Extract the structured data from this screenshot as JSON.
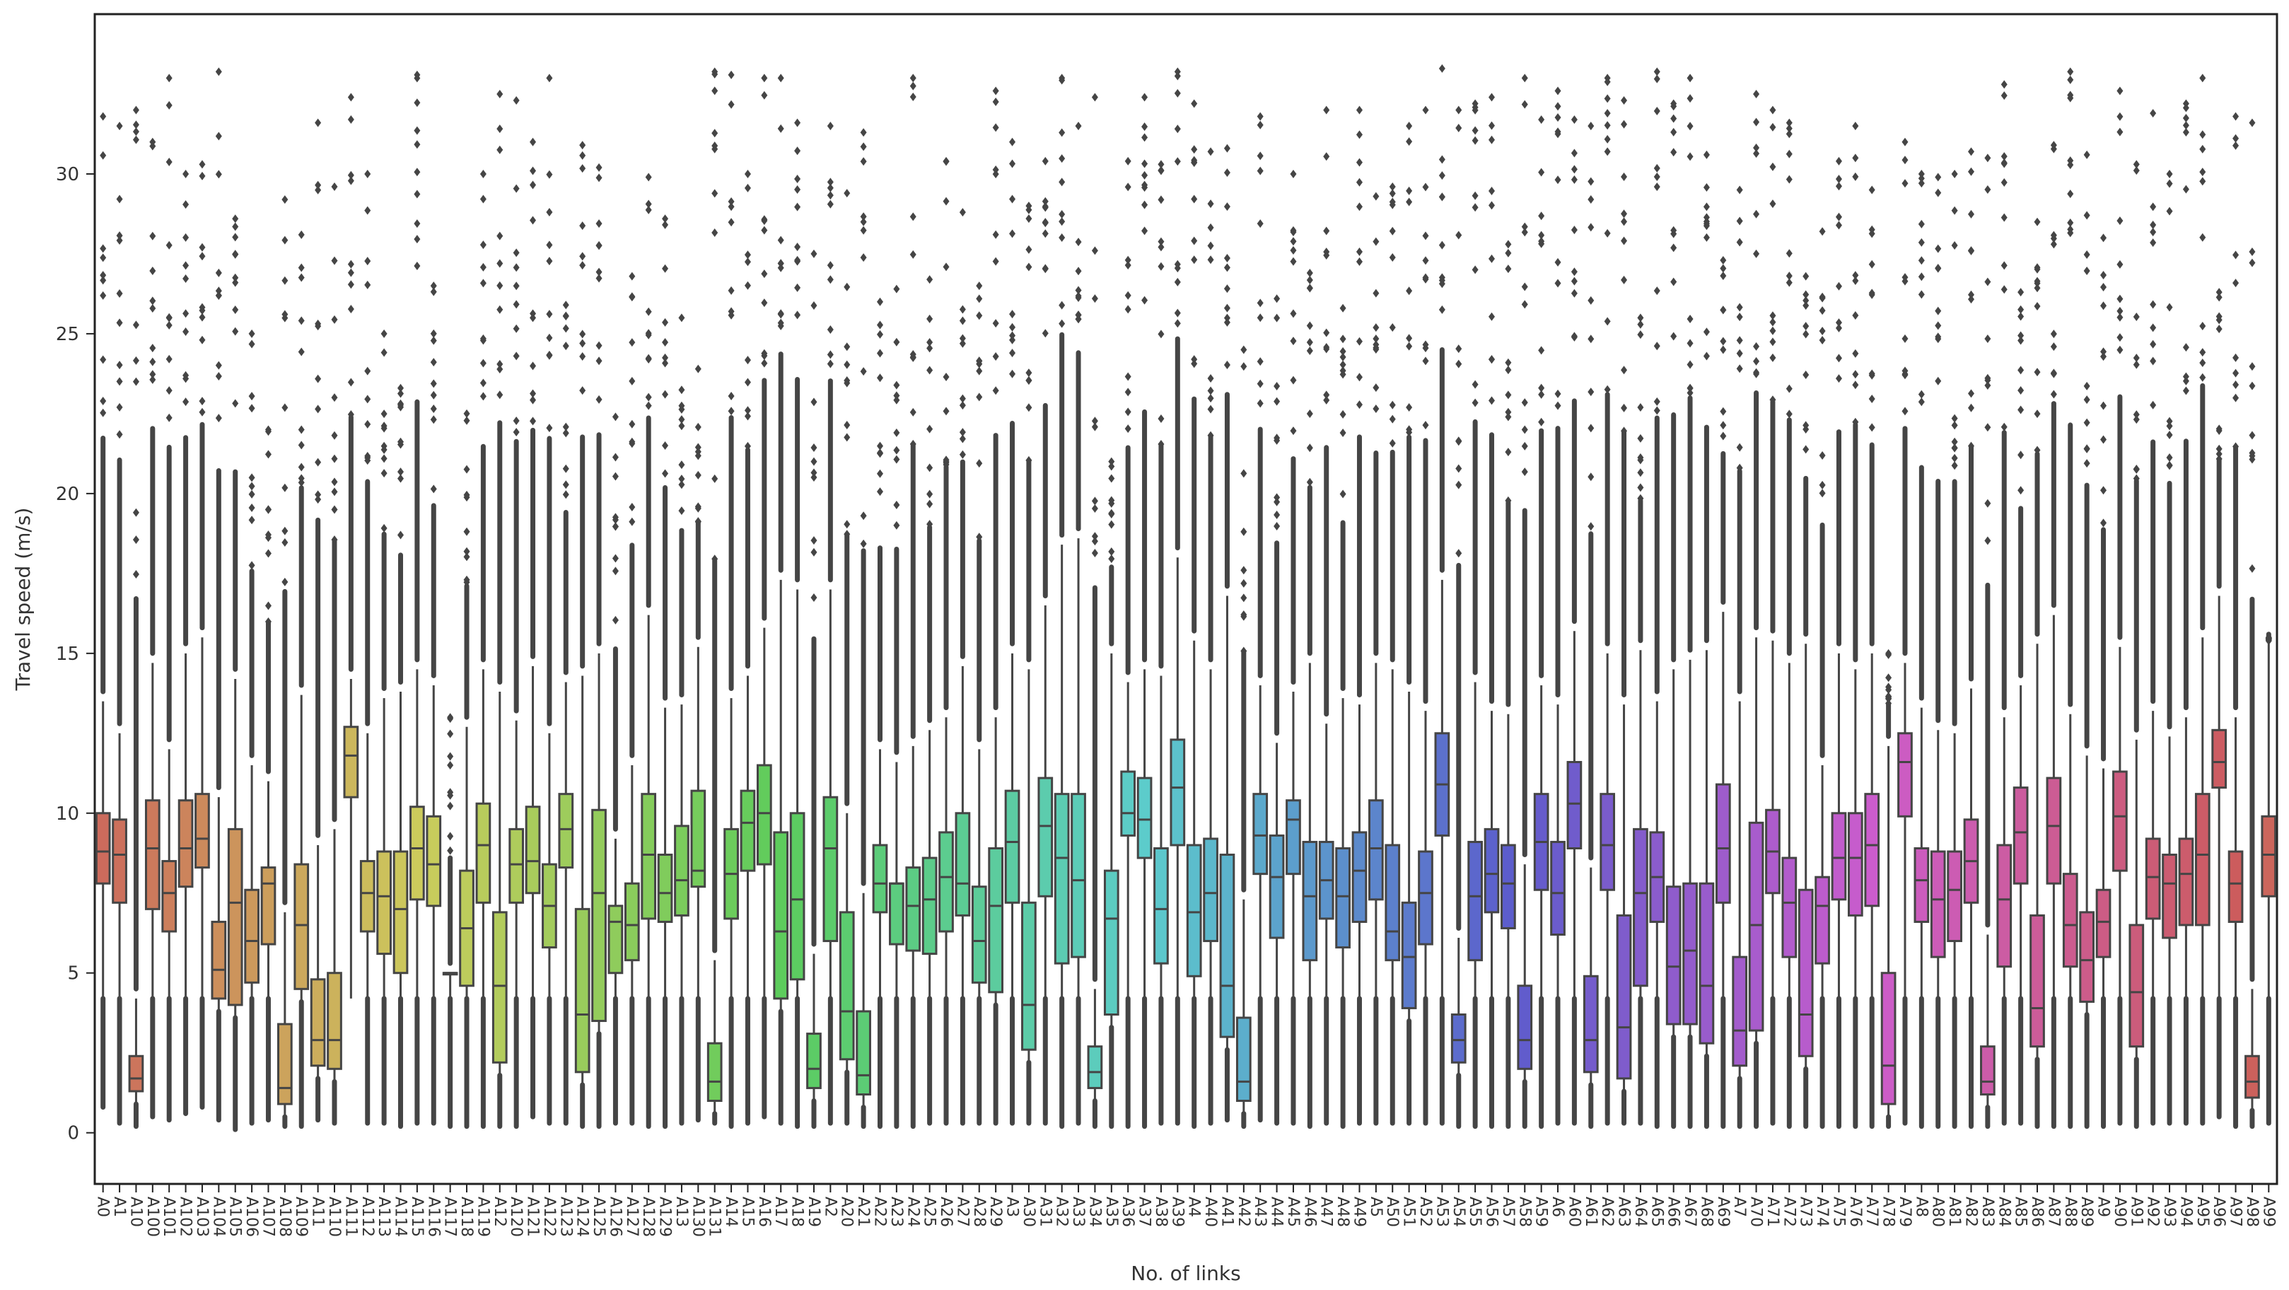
{
  "chart_data": {
    "type": "box",
    "xlabel": "No. of links",
    "ylabel": "Travel speed (m/s)",
    "ylim": [
      -1.6,
      35
    ],
    "yticks": [
      0,
      5,
      10,
      15,
      20,
      25,
      30
    ],
    "grid": false,
    "legend": "none",
    "categories": [
      "A0",
      "A1",
      "A10",
      "A100",
      "A101",
      "A102",
      "A103",
      "A104",
      "A105",
      "A106",
      "A107",
      "A108",
      "A109",
      "A11",
      "A110",
      "A111",
      "A112",
      "A113",
      "A114",
      "A115",
      "A116",
      "A117",
      "A118",
      "A119",
      "A12",
      "A120",
      "A121",
      "A122",
      "A123",
      "A124",
      "A125",
      "A126",
      "A127",
      "A128",
      "A129",
      "A13",
      "A130",
      "A131",
      "A14",
      "A15",
      "A16",
      "A17",
      "A18",
      "A19",
      "A2",
      "A20",
      "A21",
      "A22",
      "A23",
      "A24",
      "A25",
      "A26",
      "A27",
      "A28",
      "A29",
      "A3",
      "A30",
      "A31",
      "A32",
      "A33",
      "A34",
      "A35",
      "A36",
      "A37",
      "A38",
      "A39",
      "A4",
      "A40",
      "A41",
      "A42",
      "A43",
      "A44",
      "A45",
      "A46",
      "A47",
      "A48",
      "A49",
      "A5",
      "A50",
      "A51",
      "A52",
      "A53",
      "A54",
      "A55",
      "A56",
      "A57",
      "A58",
      "A59",
      "A6",
      "A60",
      "A61",
      "A62",
      "A63",
      "A64",
      "A65",
      "A66",
      "A67",
      "A68",
      "A69",
      "A7",
      "A70",
      "A71",
      "A72",
      "A73",
      "A74",
      "A75",
      "A76",
      "A77",
      "A78",
      "A79",
      "A8",
      "A80",
      "A81",
      "A82",
      "A83",
      "A84",
      "A85",
      "A86",
      "A87",
      "A88",
      "A89",
      "A9",
      "A90",
      "A91",
      "A92",
      "A93",
      "A94",
      "A95",
      "A96",
      "A97",
      "A98",
      "A99"
    ],
    "q1": [
      7.8,
      7.2,
      1.3,
      7.0,
      6.3,
      7.7,
      8.3,
      4.2,
      4.0,
      4.7,
      5.9,
      0.9,
      4.5,
      2.1,
      2.0,
      10.5,
      6.3,
      5.6,
      5.0,
      7.3,
      7.1,
      5.0,
      4.6,
      7.2,
      2.2,
      7.2,
      7.5,
      5.8,
      8.3,
      1.9,
      3.5,
      5.0,
      5.4,
      6.7,
      6.6,
      6.8,
      7.7,
      1.0,
      6.7,
      8.2,
      8.4,
      4.2,
      4.8,
      1.4,
      6.0,
      2.3,
      1.2,
      6.9,
      5.9,
      5.7,
      5.6,
      6.3,
      6.8,
      4.7,
      4.4,
      7.2,
      2.6,
      7.4,
      5.3,
      5.5,
      1.4,
      3.7,
      9.3,
      8.6,
      5.3,
      9.0,
      4.9,
      6.0,
      3.0,
      1.0,
      8.1,
      6.1,
      8.1,
      5.4,
      6.7,
      5.8,
      6.6,
      7.3,
      5.4,
      3.9,
      5.9,
      9.3,
      2.2,
      5.4,
      6.9,
      6.4,
      2.0,
      7.6,
      6.2,
      8.9,
      1.9,
      7.6,
      1.7,
      4.6,
      6.6,
      3.4,
      3.4,
      2.8,
      7.2,
      2.1,
      3.2,
      7.5,
      5.5,
      2.4,
      5.3,
      7.3,
      6.8,
      7.1,
      0.9,
      9.9,
      6.6,
      5.5,
      6.0,
      7.2,
      1.2,
      5.2,
      7.8,
      2.7,
      7.8,
      5.2,
      4.1,
      5.5,
      8.2,
      2.7,
      6.7,
      6.1,
      6.5,
      6.5,
      10.8,
      6.6,
      1.1,
      7.4
    ],
    "median": [
      8.8,
      8.7,
      1.7,
      8.9,
      7.5,
      8.9,
      9.2,
      5.1,
      7.2,
      6.0,
      7.8,
      1.4,
      6.5,
      2.9,
      2.9,
      11.8,
      7.5,
      7.4,
      7.0,
      8.9,
      8.4,
      5.0,
      6.4,
      9.0,
      4.6,
      8.4,
      8.5,
      7.1,
      9.5,
      3.7,
      7.5,
      6.6,
      6.5,
      8.7,
      7.5,
      7.9,
      8.2,
      1.6,
      8.1,
      9.7,
      10.0,
      6.3,
      7.3,
      2.0,
      8.9,
      3.8,
      1.8,
      7.8,
      7.8,
      7.1,
      7.3,
      8.0,
      7.8,
      6.0,
      7.1,
      9.1,
      4.0,
      9.6,
      8.6,
      7.9,
      1.9,
      6.7,
      10.0,
      9.8,
      7.0,
      10.8,
      6.9,
      7.5,
      4.6,
      1.6,
      9.3,
      8.0,
      9.8,
      7.4,
      7.9,
      7.4,
      8.2,
      8.9,
      6.3,
      5.5,
      7.5,
      10.9,
      2.9,
      7.4,
      8.1,
      7.8,
      2.9,
      9.1,
      7.5,
      10.3,
      2.9,
      9.0,
      3.3,
      7.5,
      8.0,
      5.2,
      5.7,
      4.6,
      8.9,
      3.2,
      6.5,
      8.8,
      7.2,
      3.7,
      7.1,
      8.6,
      8.6,
      9.0,
      2.1,
      11.6,
      7.9,
      7.3,
      7.6,
      8.5,
      1.6,
      7.3,
      9.4,
      3.9,
      9.6,
      6.5,
      5.4,
      6.6,
      9.9,
      4.4,
      8.0,
      7.8,
      8.1,
      8.7,
      11.6,
      7.8,
      1.6,
      8.7
    ],
    "q3": [
      10.0,
      9.8,
      2.4,
      10.4,
      8.5,
      10.4,
      10.6,
      6.6,
      9.5,
      7.6,
      8.3,
      3.4,
      8.4,
      4.8,
      5.0,
      12.7,
      8.5,
      8.8,
      8.8,
      10.2,
      9.9,
      5.0,
      8.2,
      10.3,
      6.9,
      9.5,
      10.2,
      8.4,
      10.6,
      7.0,
      10.1,
      7.1,
      7.8,
      10.6,
      8.7,
      9.6,
      10.7,
      2.8,
      9.5,
      10.7,
      11.5,
      9.4,
      10.0,
      3.1,
      10.5,
      6.9,
      3.8,
      9.0,
      7.8,
      8.3,
      8.6,
      9.4,
      10.0,
      7.7,
      8.9,
      10.7,
      7.2,
      11.1,
      10.6,
      10.6,
      2.7,
      8.2,
      11.3,
      11.1,
      8.9,
      12.3,
      9.0,
      9.2,
      8.7,
      3.6,
      10.6,
      9.3,
      10.4,
      9.1,
      9.1,
      8.9,
      9.4,
      10.4,
      9.0,
      7.2,
      8.8,
      12.5,
      3.7,
      9.1,
      9.5,
      9.0,
      4.6,
      10.6,
      9.1,
      11.6,
      4.9,
      10.6,
      6.8,
      9.5,
      9.4,
      7.7,
      7.8,
      7.8,
      10.9,
      5.5,
      9.7,
      10.1,
      8.6,
      7.6,
      8.0,
      10.0,
      10.0,
      10.6,
      5.0,
      12.5,
      8.9,
      8.8,
      8.8,
      9.8,
      2.7,
      9.0,
      10.8,
      6.8,
      11.1,
      8.1,
      6.9,
      7.6,
      11.3,
      6.5,
      9.2,
      8.7,
      9.2,
      10.6,
      12.6,
      8.8,
      2.4,
      9.9
    ],
    "whisker_low": [
      0.8,
      0.3,
      0.2,
      0.5,
      0.4,
      0.6,
      0.8,
      0.4,
      0.1,
      0.3,
      0.4,
      0.2,
      0.2,
      0.4,
      0.3,
      4.0,
      0.3,
      0.3,
      0.2,
      0.3,
      0.3,
      0.2,
      0.2,
      0.2,
      0.2,
      0.2,
      0.5,
      0.3,
      0.3,
      0.2,
      0.2,
      0.3,
      0.3,
      0.2,
      0.2,
      0.3,
      0.4,
      0.3,
      0.2,
      0.3,
      0.5,
      0.3,
      0.2,
      0.2,
      0.3,
      0.3,
      0.2,
      0.2,
      0.2,
      0.2,
      0.3,
      0.3,
      0.3,
      0.3,
      0.3,
      0.3,
      0.3,
      0.3,
      0.2,
      0.3,
      0.2,
      0.2,
      0.2,
      0.2,
      0.3,
      0.3,
      0.2,
      0.3,
      0.4,
      0.2,
      0.4,
      0.3,
      0.3,
      0.2,
      0.3,
      0.2,
      0.3,
      0.3,
      0.3,
      0.3,
      0.3,
      0.3,
      0.2,
      0.2,
      0.2,
      0.2,
      0.2,
      0.2,
      0.3,
      0.3,
      0.2,
      0.3,
      0.3,
      0.3,
      0.2,
      0.2,
      0.2,
      0.2,
      0.2,
      0.2,
      0.2,
      0.3,
      0.2,
      0.2,
      0.2,
      0.2,
      0.2,
      0.2,
      0.2,
      0.3,
      0.2,
      0.2,
      0.2,
      0.2,
      0.2,
      0.3,
      0.3,
      0.2,
      0.2,
      0.2,
      0.2,
      0.2,
      0.3,
      0.2,
      0.3,
      0.3,
      0.3,
      0.3,
      0.5,
      0.2,
      0.2,
      0.3
    ],
    "whisker_high": [
      13.5,
      12.5,
      4.2,
      14.7,
      12.0,
      15.0,
      15.5,
      10.5,
      14.2,
      11.5,
      11.0,
      6.9,
      13.7,
      9.0,
      9.5,
      14.2,
      12.5,
      13.6,
      13.8,
      14.5,
      14.0,
      5.0,
      12.7,
      14.5,
      13.8,
      12.9,
      14.6,
      12.5,
      14.1,
      14.3,
      15.0,
      9.2,
      11.5,
      16.2,
      13.3,
      13.4,
      15.2,
      5.4,
      13.6,
      14.3,
      15.8,
      17.3,
      17.0,
      5.6,
      17.0,
      10.0,
      7.5,
      12.0,
      11.6,
      12.1,
      12.6,
      13.0,
      14.6,
      12.0,
      13.0,
      15.0,
      14.5,
      16.5,
      18.4,
      18.6,
      4.5,
      15.0,
      14.1,
      14.5,
      14.3,
      18.0,
      15.4,
      14.5,
      16.8,
      7.3,
      14.0,
      12.2,
      13.8,
      14.7,
      12.8,
      13.6,
      13.4,
      14.7,
      14.5,
      13.8,
      13.2,
      17.3,
      6.1,
      14.1,
      13.2,
      13.1,
      8.4,
      14.0,
      13.4,
      15.7,
      8.3,
      15.0,
      13.4,
      15.1,
      13.5,
      14.5,
      14.8,
      15.1,
      16.3,
      13.5,
      15.5,
      15.4,
      14.7,
      15.3,
      11.5,
      15.0,
      14.5,
      15.0,
      12.1,
      14.7,
      13.3,
      12.6,
      12.5,
      13.9,
      6.2,
      13.0,
      14.0,
      15.3,
      16.2,
      13.1,
      11.8,
      11.4,
      15.2,
      12.3,
      13.2,
      12.4,
      13.0,
      15.5,
      16.8,
      13.0,
      4.5,
      15.3
    ],
    "outlier_max": [
      31.8,
      31.5,
      32.0,
      31.0,
      33.0,
      30.0,
      30.3,
      33.2,
      28.6,
      25.0,
      22.0,
      29.2,
      28.1,
      31.6,
      29.6,
      32.4,
      30.0,
      25.0,
      23.3,
      33.1,
      26.5,
      13.0,
      22.5,
      30.0,
      32.5,
      32.3,
      31.0,
      33.0,
      25.9,
      30.9,
      30.2,
      22.4,
      26.8,
      29.9,
      28.6,
      25.5,
      23.9,
      33.2,
      33.1,
      30.0,
      33.0,
      33.0,
      31.6,
      27.5,
      31.5,
      29.4,
      31.3,
      26.0,
      26.4,
      33.0,
      26.7,
      30.4,
      28.8,
      26.5,
      32.6,
      31.0,
      29.0,
      30.4,
      33.0,
      31.5,
      32.4,
      21.0,
      30.4,
      32.4,
      30.3,
      33.2,
      32.2,
      30.7,
      30.8,
      24.5,
      31.8,
      26.1,
      30.0,
      26.9,
      32.0,
      25.8,
      32.0,
      29.3,
      29.6,
      31.5,
      32.0,
      33.3,
      32.0,
      32.2,
      32.4,
      27.8,
      33.0,
      31.7,
      32.6,
      31.7,
      31.5,
      33.0,
      32.3,
      25.5,
      33.2,
      32.2,
      33.0,
      30.6,
      27.3,
      29.5,
      32.5,
      32.0,
      31.6,
      26.8,
      28.2,
      30.4,
      31.5,
      29.5,
      15.0,
      31.0,
      30.0,
      29.9,
      30.0,
      30.7,
      30.5,
      32.8,
      26.3,
      28.5,
      30.9,
      33.2,
      30.6,
      28.0,
      32.6,
      30.3,
      31.9,
      30.0,
      32.2,
      33.0,
      26.3,
      31.8,
      31.6,
      15.5
    ]
  }
}
